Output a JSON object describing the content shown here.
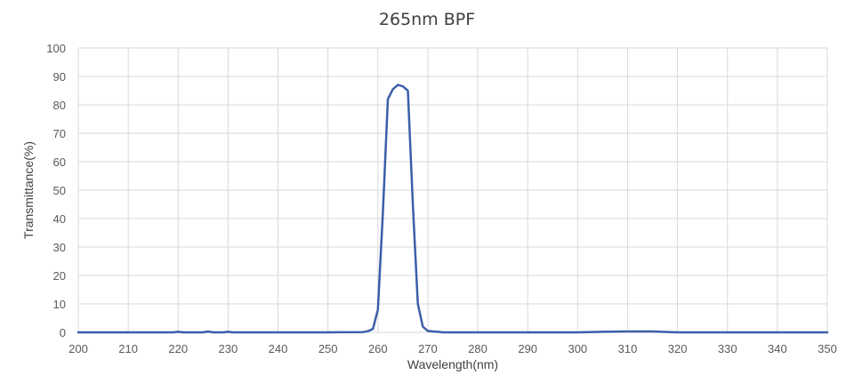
{
  "chart_data": {
    "type": "line",
    "title": "265nm BPF",
    "xlabel": "Wavelength(nm)",
    "ylabel": "Transmittance(%)",
    "xlim": [
      200,
      350
    ],
    "ylim": [
      0,
      100
    ],
    "x_ticks": [
      200,
      210,
      220,
      230,
      240,
      250,
      260,
      270,
      280,
      290,
      300,
      310,
      320,
      330,
      340,
      350
    ],
    "y_ticks": [
      0,
      10,
      20,
      30,
      40,
      50,
      60,
      70,
      80,
      90,
      100
    ],
    "grid": true,
    "legend": "none",
    "series": [
      {
        "color": "#3a5fa8",
        "x": [
          200,
          210,
          219,
          220,
          221,
          225,
          226,
          227,
          229,
          230,
          231,
          240,
          250,
          257,
          258,
          259,
          260,
          261,
          262,
          263,
          264,
          265,
          266,
          267,
          268,
          269,
          270,
          271,
          272,
          273,
          275,
          280,
          290,
          300,
          305,
          310,
          315,
          320,
          330,
          340,
          350
        ],
        "y": [
          0,
          0,
          0,
          0.2,
          0,
          0,
          0.3,
          0,
          0,
          0.2,
          0,
          0,
          0,
          0.1,
          0.4,
          1.2,
          8,
          42,
          82,
          85.5,
          87,
          86.5,
          85,
          45,
          10,
          2,
          0.5,
          0.3,
          0.2,
          0,
          0,
          0,
          0,
          0,
          0.2,
          0.3,
          0.3,
          0,
          0,
          0,
          0
        ]
      }
    ]
  }
}
